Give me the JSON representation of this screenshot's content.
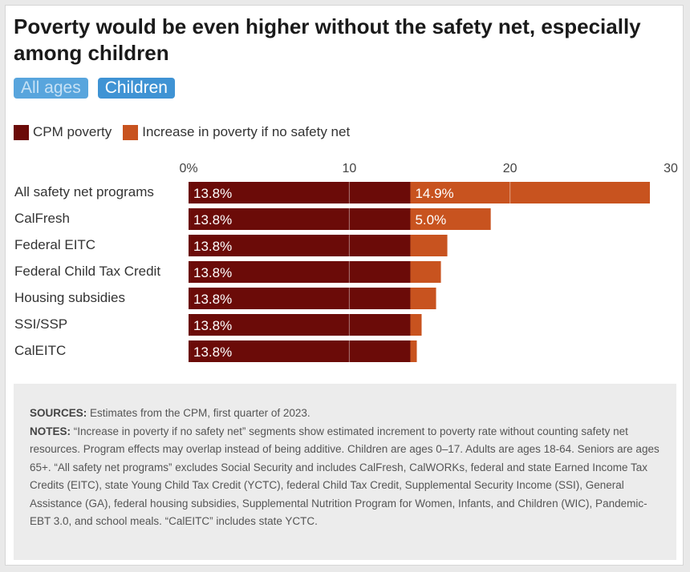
{
  "title": "Poverty would be even higher without the safety net, especially among children",
  "toggles": [
    {
      "label": "All ages",
      "active": false
    },
    {
      "label": "Children",
      "active": true
    }
  ],
  "legend": [
    {
      "label": "CPM poverty",
      "color": "#6b0b08"
    },
    {
      "label": "Increase in poverty if no safety net",
      "color": "#c8531f"
    }
  ],
  "chart_data": {
    "type": "bar",
    "orientation": "horizontal",
    "stacked": true,
    "categories": [
      "All safety net programs",
      "CalFresh",
      "Federal EITC",
      "Federal Child Tax Credit",
      "Housing subsidies",
      "SSI/SSP",
      "CalEITC"
    ],
    "series": [
      {
        "name": "CPM poverty",
        "color": "#6b0b08",
        "values": [
          13.8,
          13.8,
          13.8,
          13.8,
          13.8,
          13.8,
          13.8
        ],
        "labels": [
          "13.8%",
          "13.8%",
          "13.8%",
          "13.8%",
          "13.8%",
          "13.8%",
          "13.8%"
        ]
      },
      {
        "name": "Increase in poverty if no safety net",
        "color": "#c8531f",
        "values": [
          14.9,
          5.0,
          2.3,
          1.9,
          1.6,
          0.7,
          0.4
        ],
        "labels": [
          "14.9%",
          "5.0%",
          "",
          "",
          "",
          "",
          ""
        ]
      }
    ],
    "xlim": [
      0,
      29
    ],
    "xticks": [
      0,
      10,
      20,
      30
    ],
    "xtick_labels": [
      "0%",
      "10",
      "20",
      "30"
    ],
    "gridlines": [
      10,
      20
    ],
    "grid": true,
    "legend_position": "top-left"
  },
  "notes": {
    "sources_label": "SOURCES:",
    "sources_text": " Estimates from the CPM, first quarter of 2023.",
    "notes_label": "NOTES:",
    "notes_text": " “Increase in poverty if no safety net” segments show estimated increment to poverty rate without counting safety net resources. Program effects may overlap instead of being additive. Children are ages 0–17. Adults are ages 18-64. Seniors are ages 65+. “All safety net programs” excludes Social Security and includes CalFresh, CalWORKs, federal and state Earned Income Tax Credits (EITC), state Young Child Tax Credit (YCTC), federal Child Tax Credit, Supplemental Security Income (SSI), General Assistance (GA), federal housing subsidies, Supplemental Nutrition Program for Women, Infants, and Children (WIC), Pandemic-EBT 3.0, and school meals. “CalEITC” includes state YCTC."
  }
}
